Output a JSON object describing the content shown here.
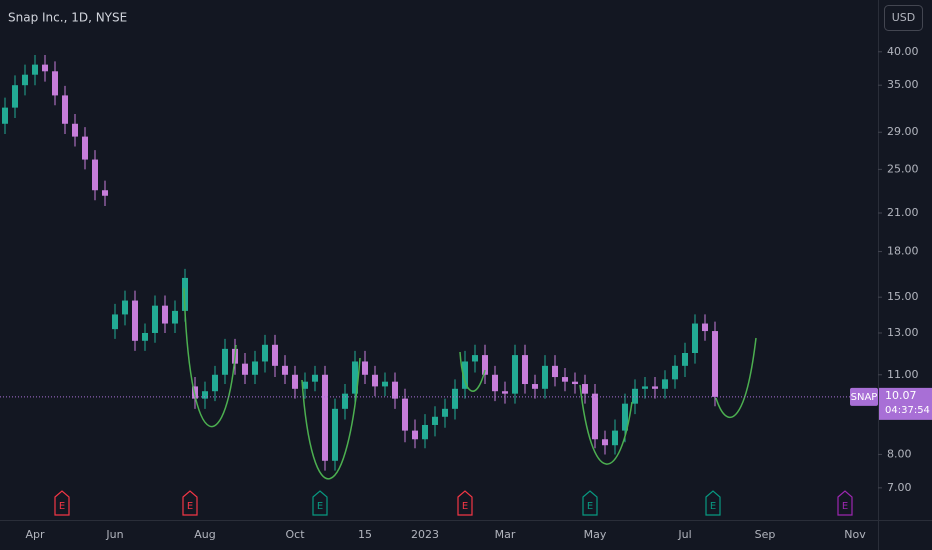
{
  "chart_data": {
    "type": "candlestick",
    "title": "Snap Inc., 1D, NYSE",
    "currency": "USD",
    "symbol": "SNAP",
    "last_price": 10.07,
    "countdown": "04:37:54",
    "earnings_label": "E",
    "log_scale": true,
    "up_color": "#22ab94",
    "down_color": "#c77dda",
    "ylim": [
      6.28,
      49.2
    ],
    "yticks": [
      {
        "value": 7,
        "label": "7.00"
      },
      {
        "value": 8,
        "label": "8.00"
      },
      {
        "value": 11,
        "label": "11.00"
      },
      {
        "value": 13,
        "label": "13.00"
      },
      {
        "value": 15,
        "label": "15.00"
      },
      {
        "value": 18,
        "label": "18.00"
      },
      {
        "value": 21,
        "label": "21.00"
      },
      {
        "value": 25,
        "label": "25.00"
      },
      {
        "value": 29,
        "label": "29.00"
      },
      {
        "value": 35,
        "label": "35.00"
      },
      {
        "value": 40,
        "label": "40.00"
      }
    ],
    "categories": [
      null,
      null,
      null,
      "Apr",
      null,
      null,
      null,
      null,
      null,
      null,
      null,
      "Jun",
      null,
      null,
      null,
      null,
      null,
      null,
      null,
      null,
      "Aug",
      null,
      null,
      null,
      null,
      null,
      null,
      null,
      null,
      "Oct",
      null,
      null,
      null,
      null,
      null,
      null,
      "15",
      null,
      null,
      null,
      null,
      null,
      "2023",
      null,
      null,
      null,
      null,
      null,
      null,
      null,
      "Mar",
      null,
      null,
      null,
      null,
      null,
      null,
      null,
      null,
      "May",
      null,
      null,
      null,
      null,
      null,
      null,
      null,
      null,
      "Jul",
      null,
      null,
      null,
      null,
      null,
      null,
      null,
      "Sep",
      null,
      null,
      null,
      null,
      null,
      null,
      null,
      null,
      "Nov"
    ],
    "open": [
      30,
      32,
      35,
      36.5,
      38,
      37,
      33.6,
      30,
      28.5,
      26,
      23,
      13.2,
      14,
      14.8,
      12.6,
      13,
      14.5,
      13.5,
      14.2,
      10.5,
      10,
      10.3,
      11,
      12.2,
      11.5,
      11,
      11.6,
      12.4,
      11.4,
      11,
      10.4,
      10.7,
      11,
      7.8,
      9.6,
      10.2,
      11.6,
      11,
      10.5,
      10.7,
      10,
      8.8,
      8.5,
      9,
      9.3,
      9.6,
      10.4,
      11.6,
      11.9,
      11,
      10.3,
      10.2,
      11.9,
      10.6,
      10.4,
      11.4,
      10.9,
      10.7,
      10.6,
      10.2,
      8.5,
      8.3,
      8.8,
      9.8,
      10.4,
      10.5,
      10.4,
      10.8,
      11.4,
      12,
      13.5,
      13.1,
      null,
      null,
      null,
      null,
      null,
      null,
      null,
      null,
      null,
      null,
      null,
      null,
      null,
      null
    ],
    "high": [
      33.3,
      36.4,
      38,
      39.5,
      39.5,
      38.5,
      34.9,
      31.2,
      29.6,
      27,
      23.9,
      14.6,
      15.4,
      15.4,
      13.5,
      15.1,
      15.1,
      14.8,
      16.8,
      10.9,
      10.7,
      11.4,
      12.7,
      12.7,
      12,
      12.1,
      12.9,
      12.9,
      11.9,
      11.4,
      11.1,
      11.4,
      11.4,
      10,
      10.6,
      12.1,
      12.1,
      11.4,
      11.1,
      11.1,
      10.4,
      9.2,
      9.4,
      9.7,
      10,
      10.8,
      12.1,
      12.4,
      12.4,
      11.4,
      10.7,
      12.4,
      12.4,
      11,
      11.9,
      11.9,
      11.3,
      11.1,
      11,
      10.6,
      8.8,
      9.2,
      10.2,
      10.8,
      10.9,
      10.9,
      11.2,
      11.9,
      12.5,
      14,
      14,
      13.6,
      null,
      null,
      null,
      null,
      null,
      null,
      null,
      null,
      null,
      null,
      null,
      null,
      null,
      null
    ],
    "low": [
      28.8,
      30.7,
      33.6,
      35,
      35.5,
      32.3,
      28.8,
      27.4,
      25,
      22.1,
      21.6,
      12.7,
      13.4,
      12.1,
      12.1,
      12.5,
      13,
      13,
      13.6,
      9.6,
      9.6,
      9.9,
      10.6,
      11,
      10.6,
      10.6,
      11.1,
      10.9,
      10.6,
      10,
      10,
      10.3,
      7.5,
      7.5,
      9.2,
      9.8,
      10.6,
      10.1,
      10.1,
      9.6,
      8.4,
      8.2,
      8.2,
      8.6,
      8.9,
      9.2,
      10,
      11.1,
      10.6,
      9.9,
      9.8,
      9.8,
      10.2,
      10,
      10,
      10.5,
      10.3,
      10.2,
      9.8,
      8.2,
      8,
      8,
      8.4,
      9.4,
      10,
      10,
      10,
      10.4,
      10.9,
      11.5,
      12.6,
      9.7,
      null,
      null,
      null,
      null,
      null,
      null,
      null,
      null,
      null,
      null,
      null,
      null,
      null,
      null
    ],
    "close": [
      32,
      35,
      36.5,
      38,
      37,
      33.6,
      30,
      28.5,
      26,
      23,
      22.5,
      14,
      14.8,
      12.6,
      13,
      14.5,
      13.5,
      14.2,
      16.2,
      10,
      10.3,
      11,
      12.2,
      11.5,
      11,
      11.6,
      12.4,
      11.4,
      11,
      10.4,
      10.7,
      11,
      7.8,
      9.6,
      10.2,
      11.6,
      11,
      10.5,
      10.7,
      10,
      8.8,
      8.5,
      9,
      9.3,
      9.6,
      10.4,
      11.6,
      11.9,
      11,
      10.3,
      10.2,
      11.9,
      10.6,
      10.4,
      11.4,
      10.9,
      10.7,
      10.6,
      10.2,
      8.5,
      8.3,
      8.8,
      9.8,
      10.4,
      10.5,
      10.4,
      10.8,
      11.4,
      12,
      13.5,
      13.1,
      10.07,
      null,
      null,
      null,
      null,
      null,
      null,
      null,
      null,
      null,
      null,
      null,
      null,
      null,
      null
    ]
  }
}
